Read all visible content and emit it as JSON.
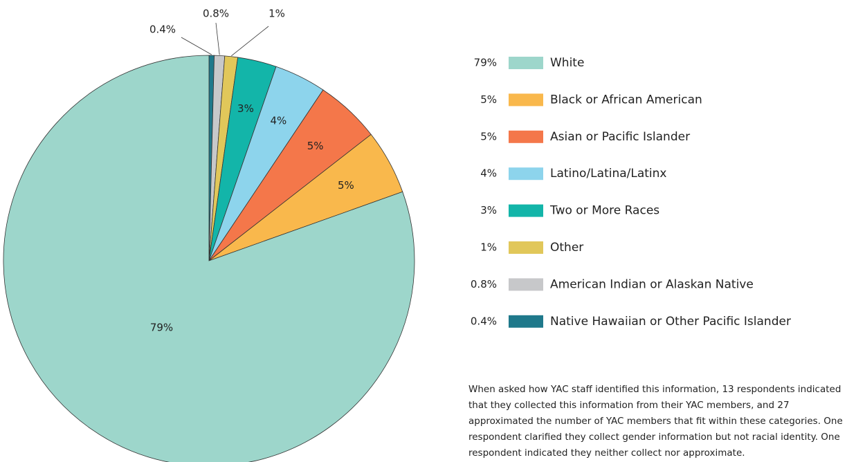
{
  "chart_data": {
    "type": "pie",
    "categories": [
      "White",
      "Black or African American",
      "Asian or Pacific Islander",
      "Latino/Latina/Latinx",
      "Two or More Races",
      "Other",
      "American Indian or Alaskan Native",
      "Native Hawaiian or Other Pacific Islander"
    ],
    "values": [
      79,
      5,
      5,
      4,
      3,
      1,
      0.8,
      0.4
    ],
    "value_labels": [
      "79%",
      "5%",
      "5%",
      "4%",
      "3%",
      "1%",
      "0.8%",
      "0.4%"
    ],
    "colors": [
      "#9dd6cb",
      "#f9b84c",
      "#f4774a",
      "#8dd4ec",
      "#13b5a9",
      "#e1c75a",
      "#c7c8ca",
      "#1f798b"
    ],
    "legend": "right"
  },
  "note": "When asked how YAC staff identified this information, 13 respondents indicated that they collected this information from their YAC members, and 27 approximated the number of YAC members that fit within these categories. One respondent clarified they collect gender information but not racial identity. One respondent indicated they neither collect nor approximate."
}
